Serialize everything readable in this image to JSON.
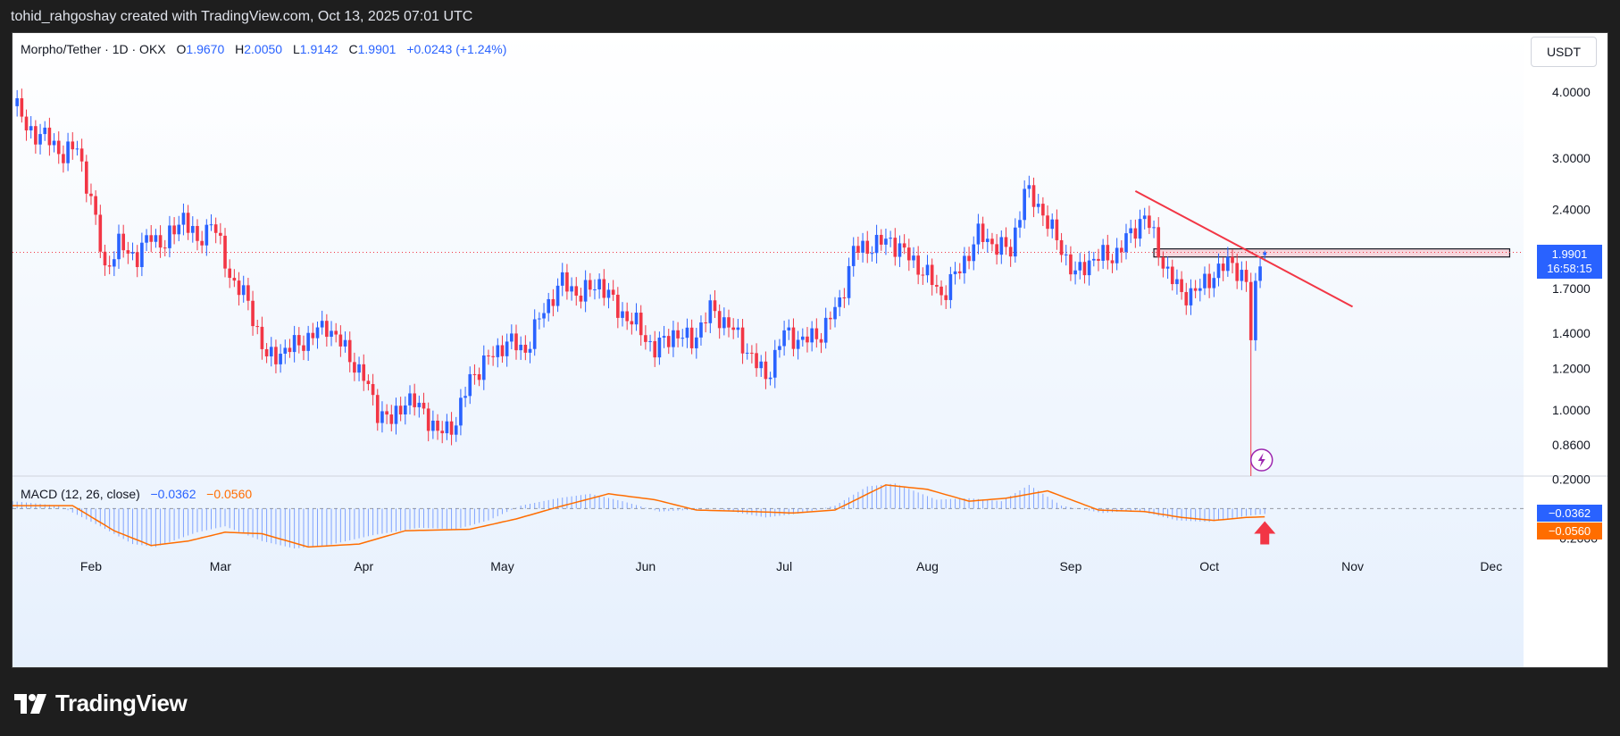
{
  "header": {
    "credit": "tohid_rahgoshay created with TradingView.com, Oct 13, 2025 07:01 UTC"
  },
  "legend": {
    "symbol": "Morpho/Tether · 1D · OKX",
    "open_label": "O",
    "open": "1.9670",
    "high_label": "H",
    "high": "2.0050",
    "low_label": "L",
    "low": "1.9142",
    "close_label": "C",
    "close": "1.9901",
    "change": "+0.0243 (+1.24%)"
  },
  "currency_button": "USDT",
  "price_tag": {
    "price": "1.9901",
    "countdown": "16:58:15"
  },
  "macd": {
    "title": "MACD (12, 26, close)",
    "macd_value": "−0.0362",
    "signal_value": "−0.0560",
    "macd_tag": "−0.0362",
    "signal_tag": "−0.0560"
  },
  "footer": {
    "brand": "TradingView"
  },
  "colors": {
    "up": "#2962ff",
    "down": "#f23645",
    "macd_line": "#2962ff",
    "signal_line": "#ff6d00",
    "trendline": "#f23645",
    "zone_fill": "#f7c6cf",
    "arrow": "#f23645"
  },
  "icons": {
    "lightning_event": "lightning-icon",
    "up_arrow": "up-arrow-icon"
  },
  "chart_data": {
    "type": "candlestick",
    "price_scale": "log",
    "ylim": [
      0.75,
      4.5
    ],
    "y_ticks": [
      "4.0000",
      "3.0000",
      "2.4000",
      "1.7000",
      "1.4000",
      "1.2000",
      "1.0000",
      "0.8600"
    ],
    "x_ticks": [
      "Feb",
      "Mar",
      "Apr",
      "May",
      "Jun",
      "Jul",
      "Aug",
      "Sep",
      "Oct",
      "Nov",
      "Dec"
    ],
    "x_range": [
      "2025-01-15",
      "2025-12-08"
    ],
    "close_path": [
      [
        "2025-01-15",
        3.95
      ],
      [
        "2025-01-18",
        3.4
      ],
      [
        "2025-01-22",
        3.3
      ],
      [
        "2025-01-26",
        3.05
      ],
      [
        "2025-01-29",
        3.15
      ],
      [
        "2025-02-01",
        2.5
      ],
      [
        "2025-02-04",
        1.85
      ],
      [
        "2025-02-07",
        2.05
      ],
      [
        "2025-02-11",
        1.95
      ],
      [
        "2025-02-14",
        2.15
      ],
      [
        "2025-02-17",
        2.05
      ],
      [
        "2025-02-21",
        2.35
      ],
      [
        "2025-02-24",
        2.05
      ],
      [
        "2025-02-27",
        2.3
      ],
      [
        "2025-03-03",
        1.8
      ],
      [
        "2025-03-07",
        1.6
      ],
      [
        "2025-03-11",
        1.25
      ],
      [
        "2025-03-15",
        1.3
      ],
      [
        "2025-03-19",
        1.35
      ],
      [
        "2025-03-24",
        1.45
      ],
      [
        "2025-03-28",
        1.3
      ],
      [
        "2025-04-01",
        1.15
      ],
      [
        "2025-04-04",
        1.0
      ],
      [
        "2025-04-07",
        0.95
      ],
      [
        "2025-04-10",
        1.05
      ],
      [
        "2025-04-14",
        1.0
      ],
      [
        "2025-04-17",
        0.9
      ],
      [
        "2025-04-21",
        0.95
      ],
      [
        "2025-04-24",
        1.15
      ],
      [
        "2025-04-28",
        1.25
      ],
      [
        "2025-05-02",
        1.35
      ],
      [
        "2025-05-06",
        1.3
      ],
      [
        "2025-05-10",
        1.55
      ],
      [
        "2025-05-14",
        1.75
      ],
      [
        "2025-05-18",
        1.65
      ],
      [
        "2025-05-22",
        1.75
      ],
      [
        "2025-05-26",
        1.55
      ],
      [
        "2025-05-30",
        1.45
      ],
      [
        "2025-06-03",
        1.3
      ],
      [
        "2025-06-07",
        1.4
      ],
      [
        "2025-06-11",
        1.35
      ],
      [
        "2025-06-15",
        1.55
      ],
      [
        "2025-06-19",
        1.45
      ],
      [
        "2025-06-23",
        1.3
      ],
      [
        "2025-06-27",
        1.15
      ],
      [
        "2025-07-01",
        1.4
      ],
      [
        "2025-07-05",
        1.35
      ],
      [
        "2025-07-09",
        1.4
      ],
      [
        "2025-07-13",
        1.6
      ],
      [
        "2025-07-16",
        2.0
      ],
      [
        "2025-07-20",
        2.05
      ],
      [
        "2025-07-24",
        2.1
      ],
      [
        "2025-07-28",
        1.95
      ],
      [
        "2025-08-01",
        1.8
      ],
      [
        "2025-08-04",
        1.65
      ],
      [
        "2025-08-08",
        1.85
      ],
      [
        "2025-08-12",
        2.15
      ],
      [
        "2025-08-16",
        2.05
      ],
      [
        "2025-08-19",
        2.0
      ],
      [
        "2025-08-22",
        2.6
      ],
      [
        "2025-08-25",
        2.45
      ],
      [
        "2025-08-29",
        2.1
      ],
      [
        "2025-09-02",
        1.8
      ],
      [
        "2025-09-06",
        1.95
      ],
      [
        "2025-09-10",
        1.95
      ],
      [
        "2025-09-14",
        2.15
      ],
      [
        "2025-09-17",
        2.35
      ],
      [
        "2025-09-21",
        1.9
      ],
      [
        "2025-09-25",
        1.65
      ],
      [
        "2025-09-29",
        1.7
      ],
      [
        "2025-10-03",
        1.85
      ],
      [
        "2025-10-06",
        1.9
      ],
      [
        "2025-10-09",
        1.75
      ],
      [
        "2025-10-10",
        1.35
      ],
      [
        "2025-10-11",
        1.7
      ],
      [
        "2025-10-12",
        1.967
      ],
      [
        "2025-10-13",
        1.9901
      ]
    ],
    "last_candle": {
      "date": "2025-10-13",
      "open": 1.967,
      "high": 2.005,
      "low": 1.9142,
      "close": 1.9901
    },
    "current_price": 1.9901,
    "resistance_zone": {
      "from": "2025-09-19",
      "to": "2025-12-05",
      "low": 1.95,
      "high": 2.02
    },
    "trendline": {
      "start": [
        "2025-09-15",
        2.6
      ],
      "end": [
        "2025-11-01",
        1.57
      ]
    },
    "spike_low": {
      "date": "2025-10-10",
      "price": 0.75
    },
    "macd": {
      "ylim": [
        -0.3,
        0.22
      ],
      "y_ticks": [
        "0.2000",
        "0.0000",
        "−0.2000"
      ],
      "macd_line": [
        [
          "2025-01-15",
          0.05
        ],
        [
          "2025-01-25",
          0.02
        ],
        [
          "2025-02-03",
          -0.12
        ],
        [
          "2025-02-10",
          -0.24
        ],
        [
          "2025-02-15",
          -0.26
        ],
        [
          "2025-02-24",
          -0.16
        ],
        [
          "2025-03-02",
          -0.12
        ],
        [
          "2025-03-10",
          -0.22
        ],
        [
          "2025-03-17",
          -0.27
        ],
        [
          "2025-03-24",
          -0.25
        ],
        [
          "2025-04-03",
          -0.18
        ],
        [
          "2025-04-13",
          -0.13
        ],
        [
          "2025-04-21",
          -0.14
        ],
        [
          "2025-04-28",
          -0.08
        ],
        [
          "2025-05-05",
          0.02
        ],
        [
          "2025-05-13",
          0.07
        ],
        [
          "2025-05-20",
          0.1
        ],
        [
          "2025-05-27",
          0.05
        ],
        [
          "2025-06-04",
          -0.02
        ],
        [
          "2025-06-16",
          0.0
        ],
        [
          "2025-06-27",
          -0.06
        ],
        [
          "2025-07-05",
          -0.03
        ],
        [
          "2025-07-12",
          0.02
        ],
        [
          "2025-07-19",
          0.15
        ],
        [
          "2025-07-25",
          0.17
        ],
        [
          "2025-08-03",
          0.06
        ],
        [
          "2025-08-10",
          0.07
        ],
        [
          "2025-08-17",
          0.05
        ],
        [
          "2025-08-23",
          0.16
        ],
        [
          "2025-08-30",
          0.02
        ],
        [
          "2025-09-08",
          -0.03
        ],
        [
          "2025-09-15",
          -0.01
        ],
        [
          "2025-09-24",
          -0.08
        ],
        [
          "2025-10-01",
          -0.09
        ],
        [
          "2025-10-09",
          -0.05
        ],
        [
          "2025-10-13",
          -0.0362
        ]
      ],
      "signal_line": [
        [
          "2025-01-15",
          0.02
        ],
        [
          "2025-01-28",
          0.02
        ],
        [
          "2025-02-06",
          -0.15
        ],
        [
          "2025-02-14",
          -0.25
        ],
        [
          "2025-02-22",
          -0.22
        ],
        [
          "2025-03-02",
          -0.16
        ],
        [
          "2025-03-10",
          -0.17
        ],
        [
          "2025-03-20",
          -0.26
        ],
        [
          "2025-03-31",
          -0.24
        ],
        [
          "2025-04-10",
          -0.15
        ],
        [
          "2025-04-24",
          -0.14
        ],
        [
          "2025-05-04",
          -0.07
        ],
        [
          "2025-05-13",
          0.01
        ],
        [
          "2025-05-24",
          0.1
        ],
        [
          "2025-06-03",
          0.06
        ],
        [
          "2025-06-12",
          -0.01
        ],
        [
          "2025-06-24",
          -0.02
        ],
        [
          "2025-07-03",
          -0.03
        ],
        [
          "2025-07-12",
          -0.01
        ],
        [
          "2025-07-23",
          0.16
        ],
        [
          "2025-08-01",
          0.13
        ],
        [
          "2025-08-10",
          0.05
        ],
        [
          "2025-08-18",
          0.07
        ],
        [
          "2025-08-27",
          0.12
        ],
        [
          "2025-09-07",
          -0.01
        ],
        [
          "2025-09-17",
          -0.02
        ],
        [
          "2025-09-25",
          -0.06
        ],
        [
          "2025-10-02",
          -0.08
        ],
        [
          "2025-10-09",
          -0.06
        ],
        [
          "2025-10-13",
          -0.056
        ]
      ]
    }
  }
}
